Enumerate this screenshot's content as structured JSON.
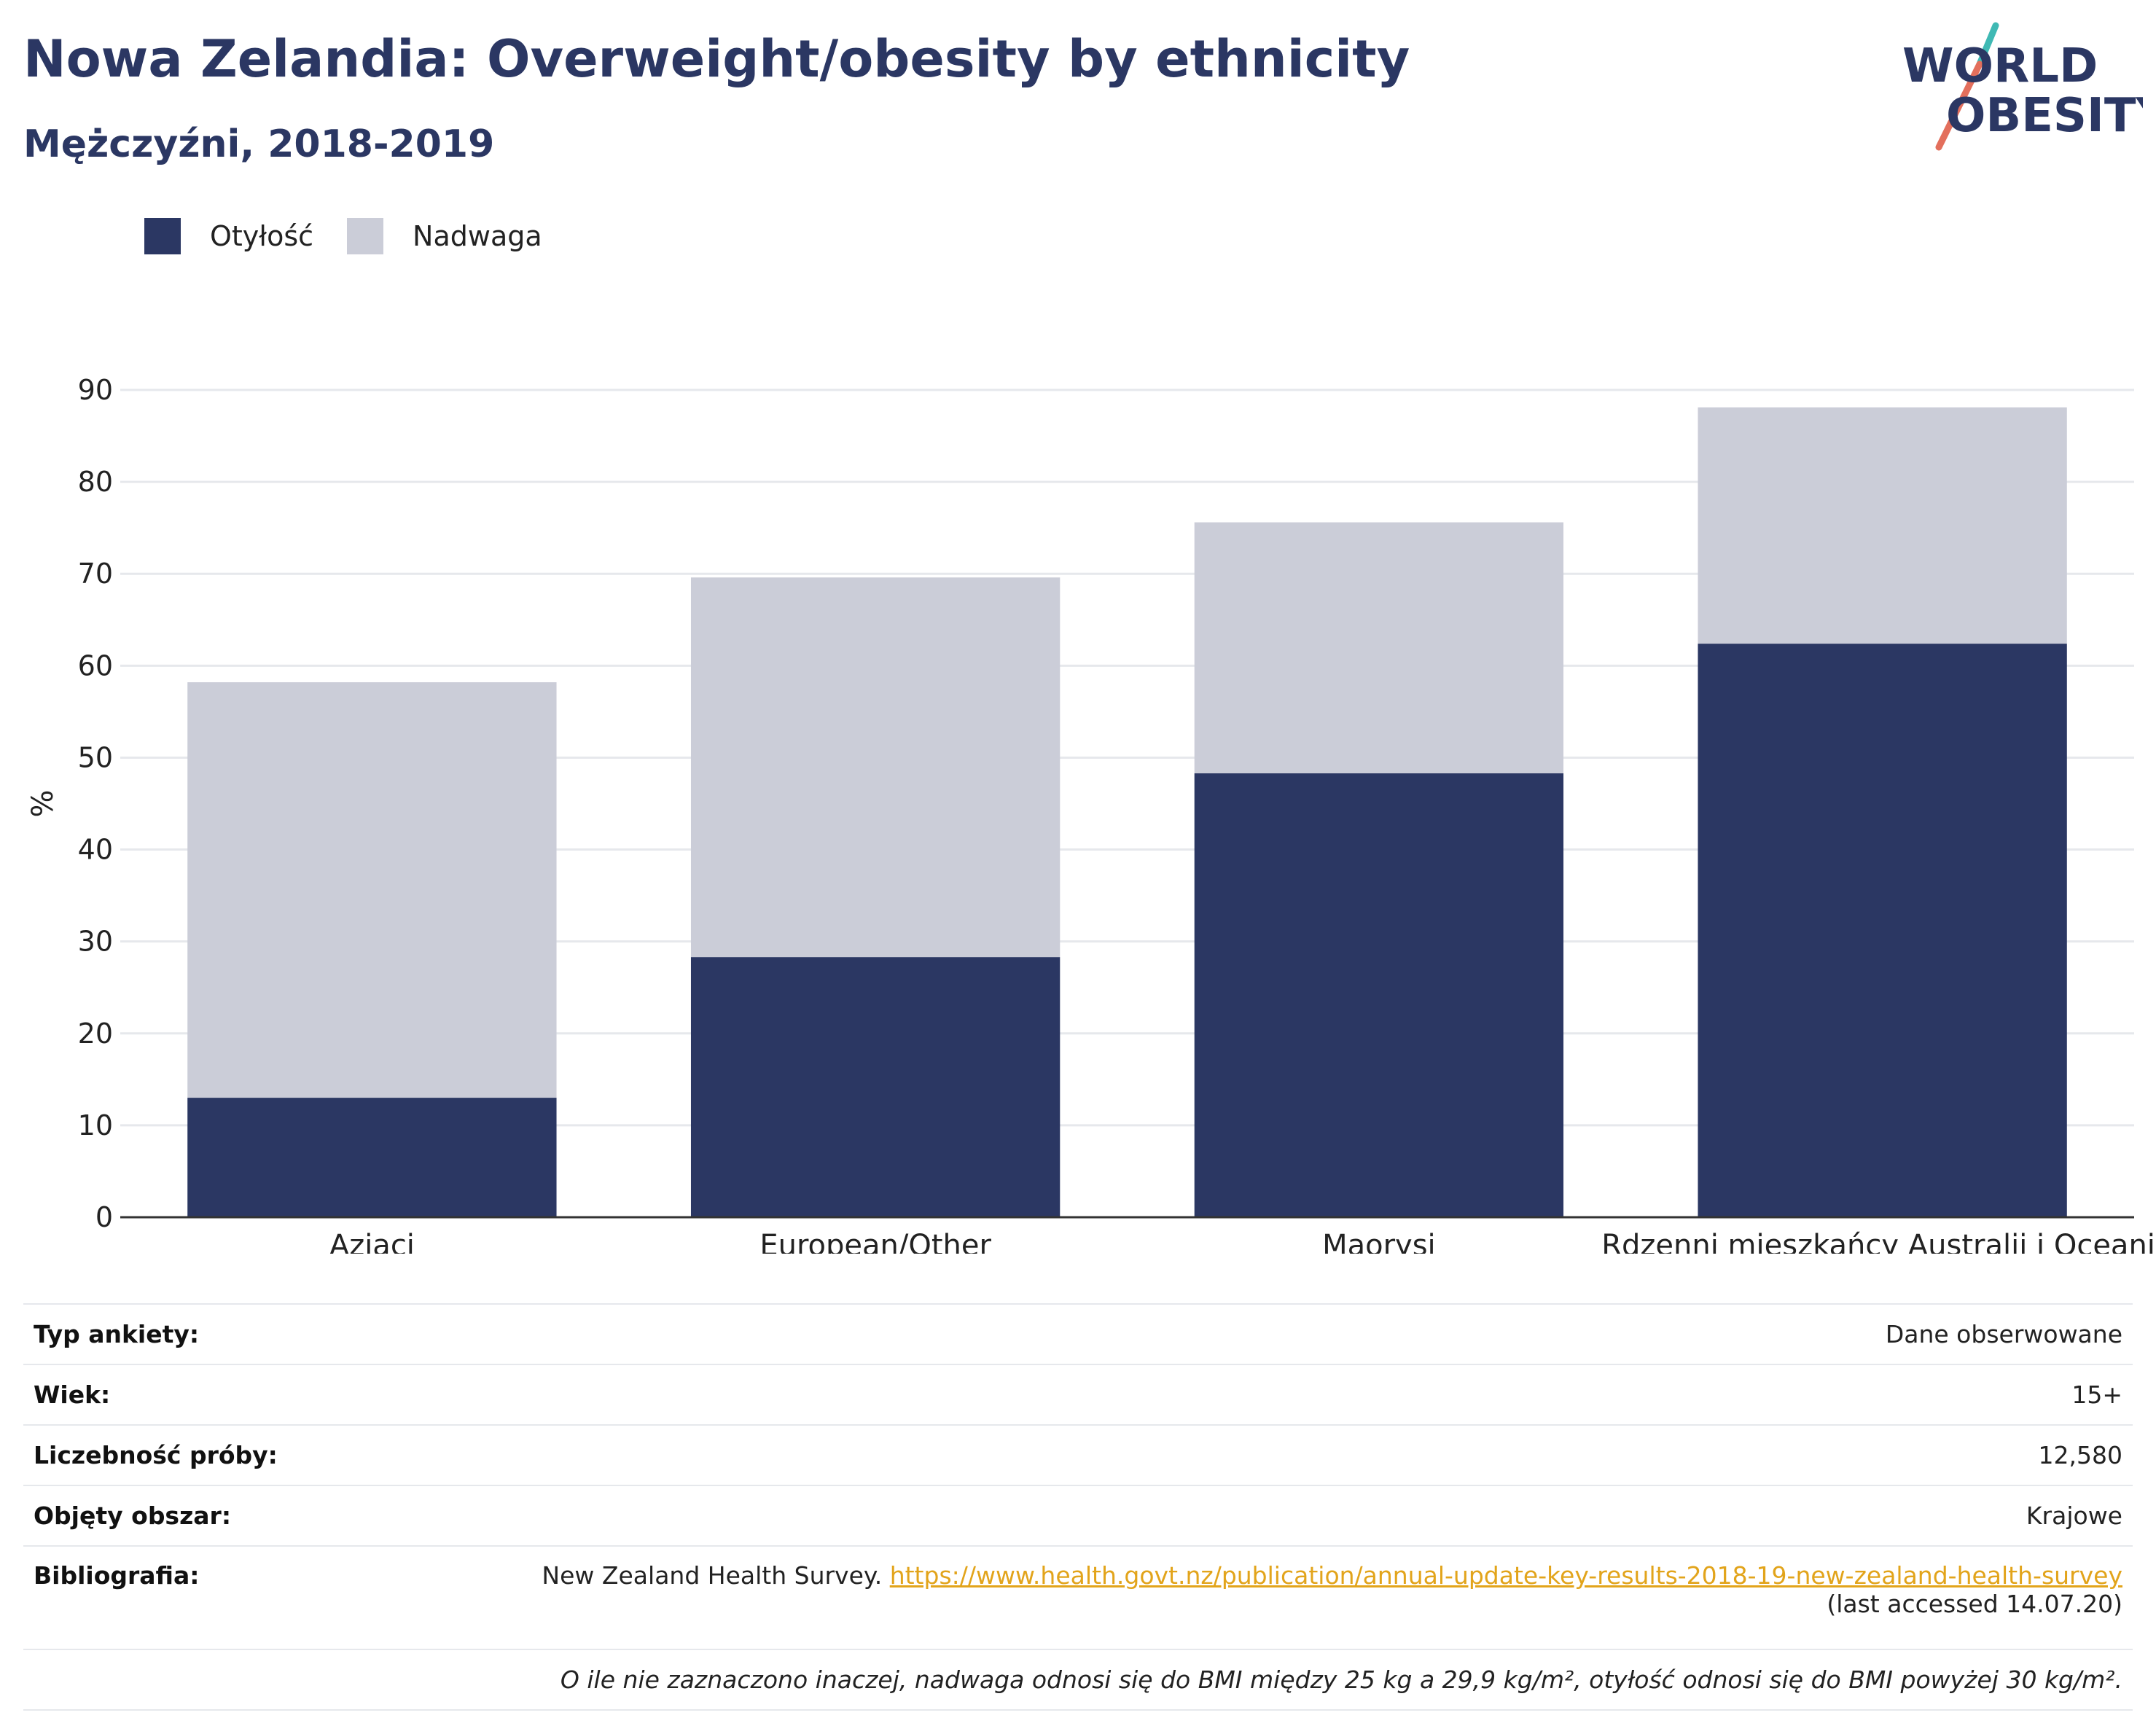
{
  "header": {
    "title": "Nowa Zelandia: Overweight/obesity by ethnicity",
    "subtitle": "Mężczyźni, 2018-2019"
  },
  "logo": {
    "line1": "WORLD",
    "line2": "OBESITY",
    "colors": {
      "text": "#2b3763",
      "slash_teal": "#3fb9b4",
      "slash_coral": "#e36f5c"
    }
  },
  "legend": [
    {
      "label": "Otyłość",
      "color": "#2b3763"
    },
    {
      "label": "Nadwaga",
      "color": "#cbcdd8"
    }
  ],
  "chart_data": {
    "type": "bar",
    "stacked": true,
    "categories": [
      "Azjaci",
      "European/Other",
      "Maorysi",
      "Rdzenni mieszkańcy Australii i Oceanii"
    ],
    "series": [
      {
        "name": "Otyłość",
        "values": [
          13.0,
          28.3,
          48.3,
          62.4
        ],
        "color": "#2b3763"
      },
      {
        "name": "Nadwaga",
        "values": [
          45.2,
          41.3,
          27.3,
          25.7
        ],
        "color": "#cbcdd8"
      }
    ],
    "ylabel": "%",
    "ylim": [
      0,
      90
    ],
    "yticks": [
      0,
      10,
      20,
      30,
      40,
      50,
      60,
      70,
      80,
      90
    ],
    "grid": true,
    "legend_position": "top-left"
  },
  "info": {
    "rows": [
      {
        "key": "Typ ankiety:",
        "value": "Dane obserwowane"
      },
      {
        "key": "Wiek:",
        "value": "15+"
      },
      {
        "key": "Liczebność próby:",
        "value": "12,580"
      },
      {
        "key": "Objęty obszar:",
        "value": "Krajowe"
      }
    ],
    "bibliography": {
      "key": "Bibliografia:",
      "source": "New Zealand Health Survey.",
      "url": "https://www.health.govt.nz/publication/annual-update-key-results-2018-19-new-zealand-health-survey",
      "accessed": "(last accessed 14.07.20)"
    },
    "note": "O ile nie zaznaczono inaczej, nadwaga odnosi się do BMI między 25 kg a 29,9 kg/m², otyłość odnosi się do BMI powyżej 30 kg/m²."
  }
}
